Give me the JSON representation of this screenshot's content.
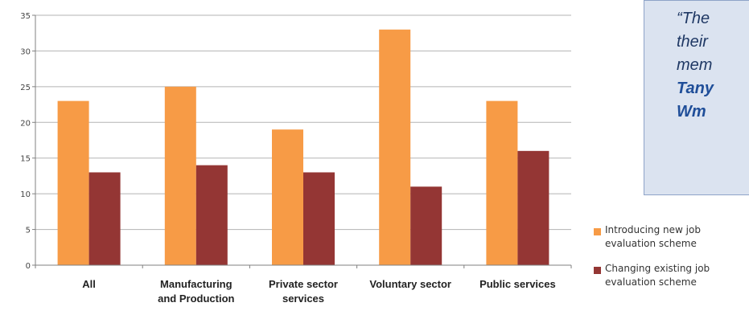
{
  "chart_data": {
    "type": "bar",
    "categories": [
      "All",
      "Manufacturing\nand Production",
      "Private sector\nservices",
      "Voluntary sector",
      "Public services"
    ],
    "series": [
      {
        "name": "Introducing new job evaluation scheme",
        "color": "#f79b46",
        "values": [
          23,
          25,
          19,
          33,
          23
        ]
      },
      {
        "name": "Changing existing job evaluation scheme",
        "color": "#943634",
        "values": [
          13,
          14,
          13,
          11,
          16
        ]
      }
    ],
    "ylim": [
      0,
      35
    ],
    "yticks": [
      0,
      5,
      10,
      15,
      20,
      25,
      30,
      35
    ],
    "grid": true,
    "legend": "right"
  },
  "quote": {
    "lines": [
      "“The",
      "their",
      "mem",
      "Tany",
      "Wm"
    ],
    "emphasis": [
      false,
      false,
      false,
      true,
      true
    ]
  },
  "legend": {
    "items": [
      {
        "label": "Introducing new job\nevaluation scheme",
        "color": "#f79b46"
      },
      {
        "label": "Changing existing job\nevaluation scheme",
        "color": "#943634"
      }
    ]
  }
}
